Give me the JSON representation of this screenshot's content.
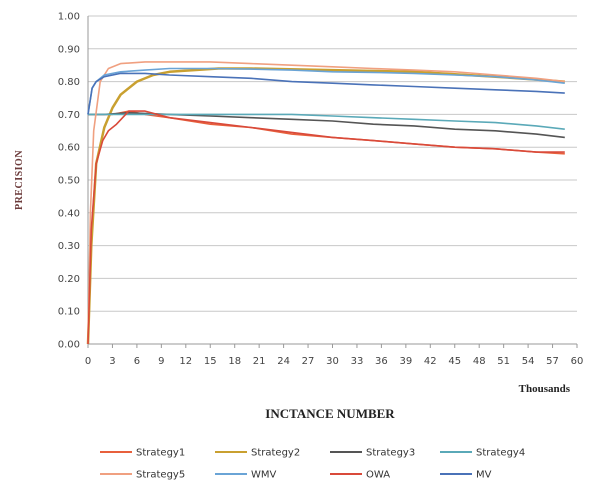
{
  "chart_data": {
    "type": "line",
    "title": "",
    "ylabel": "PRECISION",
    "xlabel": "INCTANCE NUMBER",
    "xunit": "Thousands",
    "xlim": [
      0,
      60
    ],
    "ylim": [
      0,
      1
    ],
    "xticks": [
      "0",
      "3",
      "6",
      "9",
      "12",
      "15",
      "18",
      "21",
      "24",
      "27",
      "30",
      "33",
      "36",
      "39",
      "42",
      "45",
      "48",
      "51",
      "54",
      "57",
      "60"
    ],
    "yticks": [
      "0.00",
      "0.10",
      "0.20",
      "0.30",
      "0.40",
      "0.50",
      "0.60",
      "0.70",
      "0.80",
      "0.90",
      "1.00"
    ],
    "grid": true,
    "legend_position": "bottom",
    "series": [
      {
        "name": "Strategy1",
        "color": "#e8603c",
        "points": [
          [
            0,
            0.7
          ],
          [
            1,
            0.7
          ],
          [
            3,
            0.7
          ],
          [
            5,
            0.71
          ],
          [
            7,
            0.7
          ],
          [
            10,
            0.69
          ],
          [
            15,
            0.67
          ],
          [
            20,
            0.66
          ],
          [
            25,
            0.64
          ],
          [
            30,
            0.63
          ],
          [
            35,
            0.62
          ],
          [
            40,
            0.61
          ],
          [
            45,
            0.6
          ],
          [
            50,
            0.595
          ],
          [
            55,
            0.585
          ],
          [
            58.5,
            0.58
          ]
        ]
      },
      {
        "name": "Strategy2",
        "color": "#c9a030",
        "points": [
          [
            0,
            0.0
          ],
          [
            0.4,
            0.3
          ],
          [
            1,
            0.55
          ],
          [
            2,
            0.66
          ],
          [
            3,
            0.72
          ],
          [
            4,
            0.76
          ],
          [
            6,
            0.8
          ],
          [
            8,
            0.82
          ],
          [
            10,
            0.83
          ],
          [
            13,
            0.835
          ],
          [
            16,
            0.84
          ],
          [
            20,
            0.84
          ],
          [
            30,
            0.835
          ],
          [
            40,
            0.83
          ],
          [
            50,
            0.815
          ],
          [
            58.5,
            0.8
          ]
        ]
      },
      {
        "name": "Strategy3",
        "color": "#555555",
        "points": [
          [
            0,
            0.7
          ],
          [
            2,
            0.7
          ],
          [
            5,
            0.705
          ],
          [
            10,
            0.7
          ],
          [
            15,
            0.695
          ],
          [
            20,
            0.69
          ],
          [
            25,
            0.685
          ],
          [
            30,
            0.68
          ],
          [
            35,
            0.67
          ],
          [
            40,
            0.665
          ],
          [
            45,
            0.655
          ],
          [
            50,
            0.65
          ],
          [
            55,
            0.64
          ],
          [
            58.5,
            0.63
          ]
        ]
      },
      {
        "name": "Strategy4",
        "color": "#5aa9b8",
        "points": [
          [
            0,
            0.7
          ],
          [
            2,
            0.7
          ],
          [
            5,
            0.7
          ],
          [
            10,
            0.7
          ],
          [
            15,
            0.7
          ],
          [
            20,
            0.7
          ],
          [
            25,
            0.7
          ],
          [
            30,
            0.695
          ],
          [
            35,
            0.69
          ],
          [
            40,
            0.685
          ],
          [
            45,
            0.68
          ],
          [
            50,
            0.675
          ],
          [
            55,
            0.665
          ],
          [
            58.5,
            0.655
          ]
        ]
      },
      {
        "name": "Strategy5",
        "color": "#f0a080",
        "points": [
          [
            0,
            0.0
          ],
          [
            0.3,
            0.4
          ],
          [
            0.7,
            0.65
          ],
          [
            1.5,
            0.8
          ],
          [
            2.5,
            0.84
          ],
          [
            4,
            0.855
          ],
          [
            7,
            0.86
          ],
          [
            10,
            0.86
          ],
          [
            15,
            0.86
          ],
          [
            20,
            0.855
          ],
          [
            25,
            0.85
          ],
          [
            30,
            0.845
          ],
          [
            35,
            0.84
          ],
          [
            40,
            0.835
          ],
          [
            45,
            0.83
          ],
          [
            50,
            0.82
          ],
          [
            55,
            0.81
          ],
          [
            58.5,
            0.8
          ]
        ]
      },
      {
        "name": "WMV",
        "color": "#6aa4d6",
        "points": [
          [
            0,
            0.7
          ],
          [
            0.5,
            0.78
          ],
          [
            1,
            0.8
          ],
          [
            2,
            0.82
          ],
          [
            4,
            0.83
          ],
          [
            7,
            0.835
          ],
          [
            10,
            0.84
          ],
          [
            15,
            0.84
          ],
          [
            20,
            0.838
          ],
          [
            25,
            0.835
          ],
          [
            30,
            0.83
          ],
          [
            35,
            0.828
          ],
          [
            40,
            0.825
          ],
          [
            45,
            0.82
          ],
          [
            50,
            0.815
          ],
          [
            55,
            0.805
          ],
          [
            58.5,
            0.795
          ]
        ]
      },
      {
        "name": "OWA",
        "color": "#d94a3a",
        "points": [
          [
            0,
            0.0
          ],
          [
            0.4,
            0.35
          ],
          [
            1,
            0.55
          ],
          [
            1.8,
            0.62
          ],
          [
            2.5,
            0.65
          ],
          [
            3.5,
            0.67
          ],
          [
            5,
            0.71
          ],
          [
            7,
            0.71
          ],
          [
            10,
            0.69
          ],
          [
            15,
            0.675
          ],
          [
            20,
            0.66
          ],
          [
            25,
            0.645
          ],
          [
            30,
            0.63
          ],
          [
            35,
            0.62
          ],
          [
            40,
            0.61
          ],
          [
            45,
            0.6
          ],
          [
            50,
            0.595
          ],
          [
            55,
            0.585
          ],
          [
            58.5,
            0.585
          ]
        ]
      },
      {
        "name": "MV",
        "color": "#4a72b8",
        "points": [
          [
            0,
            0.7
          ],
          [
            0.5,
            0.78
          ],
          [
            1,
            0.8
          ],
          [
            2,
            0.815
          ],
          [
            4,
            0.825
          ],
          [
            7,
            0.825
          ],
          [
            10,
            0.82
          ],
          [
            15,
            0.815
          ],
          [
            20,
            0.81
          ],
          [
            25,
            0.8
          ],
          [
            30,
            0.795
          ],
          [
            35,
            0.79
          ],
          [
            40,
            0.785
          ],
          [
            45,
            0.78
          ],
          [
            50,
            0.775
          ],
          [
            55,
            0.77
          ],
          [
            58.5,
            0.765
          ]
        ]
      }
    ]
  }
}
